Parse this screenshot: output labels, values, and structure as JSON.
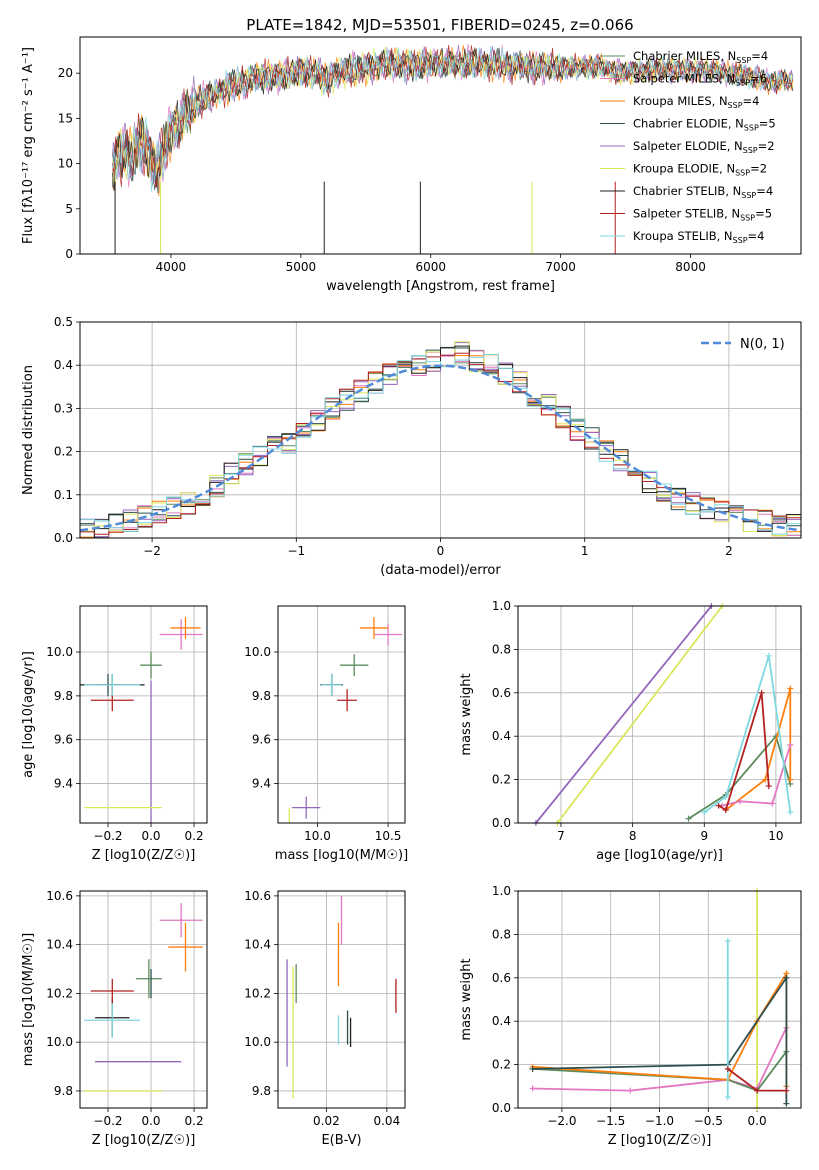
{
  "figure_title": "PLATE=1842, MJD=53501, FIBERID=0245, z=0.066",
  "series_colors": [
    "#5b8a5b",
    "#e377c2",
    "#ff7f0e",
    "#2f4f4f",
    "#9467bd",
    "#dbe55a",
    "#1f1f1f",
    "#b22222",
    "#7fd8e0"
  ],
  "chart_data": [
    {
      "id": "spectrum",
      "type": "line",
      "title": "PLATE=1842, MJD=53501, FIBERID=0245, z=0.066",
      "xlabel": "wavelength [Angstrom, rest frame]",
      "ylabel": "Flux [fλ10⁻¹⁷ erg cm⁻² s⁻¹ A⁻¹]",
      "xlim": [
        3300,
        8850
      ],
      "ylim": [
        0,
        24
      ],
      "xticks": [
        4000,
        5000,
        6000,
        7000,
        8000
      ],
      "yticks": [
        0,
        5,
        10,
        15,
        20
      ],
      "grid": false,
      "legend_position": "top-right",
      "x": [
        3550,
        3600,
        3650,
        3700,
        3750,
        3800,
        3850,
        3900,
        3950,
        4000,
        4100,
        4200,
        4300,
        4400,
        4500,
        4600,
        4700,
        4800,
        4900,
        5000,
        5100,
        5200,
        5300,
        5400,
        5500,
        5600,
        5700,
        5800,
        5900,
        6000,
        6100,
        6200,
        6300,
        6400,
        6500,
        6600,
        6700,
        6800,
        6900,
        7000,
        7100,
        7200,
        7300,
        7400,
        7500,
        7600,
        7700,
        7800,
        7900,
        8000,
        8100,
        8200,
        8300,
        8400,
        8500,
        8600,
        8700,
        8800
      ],
      "y": [
        9.8,
        10.8,
        11.2,
        10.6,
        12.4,
        12.0,
        10.2,
        9.4,
        11.8,
        13.6,
        15.2,
        16.8,
        17.4,
        18.2,
        18.8,
        19.2,
        19.5,
        19.6,
        19.8,
        20.3,
        20.1,
        19.2,
        20.2,
        20.4,
        20.6,
        21.0,
        21.0,
        20.8,
        20.9,
        21.1,
        21.2,
        21.0,
        21.2,
        21.1,
        21.0,
        20.9,
        20.7,
        20.6,
        20.7,
        20.6,
        20.7,
        20.6,
        20.8,
        20.2,
        20.1,
        20.4,
        20.3,
        20.4,
        20.3,
        20.3,
        20.4,
        20.2,
        19.9,
        19.8,
        19.5,
        19.0,
        19.2,
        19.0
      ],
      "series": [
        {
          "name": "Chabrier MILES, N_SSP=4",
          "color": "#5b8a5b"
        },
        {
          "name": "Salpeter MILES, N_SSP=6",
          "color": "#e377c2"
        },
        {
          "name": "Kroupa MILES, N_SSP=4",
          "color": "#ff7f0e"
        },
        {
          "name": "Chabrier ELODIE, N_SSP=5",
          "color": "#2f4f4f"
        },
        {
          "name": "Salpeter ELODIE, N_SSP=2",
          "color": "#9467bd"
        },
        {
          "name": "Kroupa ELODIE, N_SSP=2",
          "color": "#dbe55a"
        },
        {
          "name": "Chabrier STELIB, N_SSP=4",
          "color": "#1f1f1f"
        },
        {
          "name": "Salpeter STELIB, N_SSP=5",
          "color": "#b22222"
        },
        {
          "name": "Kroupa STELIB, N_SSP=4",
          "color": "#7fd8e0"
        }
      ]
    },
    {
      "id": "residual-histogram",
      "type": "line",
      "xlabel": "(data-model)/error",
      "ylabel": "Normed distribution",
      "xlim": [
        -2.5,
        2.5
      ],
      "ylim": [
        0,
        0.5
      ],
      "xticks": [
        -2,
        -1,
        0,
        1,
        2
      ],
      "ytick_values": [
        0.0,
        0.1,
        0.2,
        0.3,
        0.4,
        0.5
      ],
      "ytick_labels": [
        "0.0",
        "0.1",
        "0.2",
        "0.3",
        "0.4",
        "0.5"
      ],
      "grid": true,
      "legend_position": "top-right",
      "normal_label": "N(0, 1)",
      "hist_bins": [
        -2.5,
        -2.4,
        -2.3,
        -2.2,
        -2.1,
        -2.0,
        -1.9,
        -1.8,
        -1.7,
        -1.6,
        -1.5,
        -1.4,
        -1.3,
        -1.2,
        -1.1,
        -1.0,
        -0.9,
        -0.8,
        -0.7,
        -0.6,
        -0.5,
        -0.4,
        -0.3,
        -0.2,
        -0.1,
        0.0,
        0.1,
        0.2,
        0.3,
        0.4,
        0.5,
        0.6,
        0.7,
        0.8,
        0.9,
        1.0,
        1.1,
        1.2,
        1.3,
        1.4,
        1.5,
        1.6,
        1.7,
        1.8,
        1.9,
        2.0,
        2.1,
        2.2,
        2.3,
        2.4,
        2.5
      ],
      "hist_heights": [
        0.02,
        0.02,
        0.03,
        0.04,
        0.05,
        0.06,
        0.07,
        0.08,
        0.1,
        0.12,
        0.15,
        0.17,
        0.19,
        0.21,
        0.22,
        0.25,
        0.27,
        0.3,
        0.32,
        0.34,
        0.36,
        0.38,
        0.39,
        0.4,
        0.41,
        0.42,
        0.43,
        0.41,
        0.4,
        0.38,
        0.36,
        0.33,
        0.31,
        0.28,
        0.25,
        0.23,
        0.2,
        0.18,
        0.15,
        0.13,
        0.11,
        0.09,
        0.08,
        0.07,
        0.06,
        0.05,
        0.04,
        0.04,
        0.03,
        0.03
      ]
    },
    {
      "id": "age-vs-Z",
      "type": "scatter",
      "xlabel": "Z [log10(Z/Z☉)]",
      "ylabel": "age  [log10(age/yr)]",
      "xlim": [
        -0.33,
        0.26
      ],
      "ylim": [
        9.22,
        10.21
      ],
      "xticks": [
        -0.2,
        0.0,
        0.2
      ],
      "yticks": [
        9.4,
        9.6,
        9.8,
        10.0
      ],
      "grid": true,
      "points": [
        {
          "series": "Chabrier MILES",
          "x": 0.0,
          "y": 9.94,
          "xerr": 0.05,
          "yerr": 0.06
        },
        {
          "series": "Salpeter MILES",
          "x": 0.14,
          "y": 10.08,
          "xerr": 0.1,
          "yerr": 0.07
        },
        {
          "series": "Kroupa MILES",
          "x": 0.16,
          "y": 10.11,
          "xerr": 0.07,
          "yerr": 0.05
        },
        {
          "series": "Chabrier ELODIE",
          "x": -0.2,
          "y": 9.85,
          "xerr": 0.05,
          "yerr": 0.05
        },
        {
          "series": "Salpeter ELODIE",
          "x": 0.0,
          "y": 9.87,
          "xerr": 0.0,
          "yerr": 0.0
        },
        {
          "series": "Kroupa ELODIE",
          "x": -0.13,
          "y": 9.29,
          "xerr": 0.18,
          "yerr": 0.0
        },
        {
          "series": "Chabrier STELIB",
          "x": -0.18,
          "y": 9.85,
          "xerr": 0.15,
          "yerr": 0.05
        },
        {
          "series": "Salpeter STELIB",
          "x": -0.18,
          "y": 9.78,
          "xerr": 0.1,
          "yerr": 0.05
        },
        {
          "series": "Kroupa STELIB",
          "x": -0.18,
          "y": 9.85,
          "xerr": 0.13,
          "yerr": 0.05
        }
      ]
    },
    {
      "id": "age-vs-mass",
      "type": "scatter",
      "xlabel": "mass [log10(M/M☉)]",
      "ylabel": "",
      "xlim": [
        9.72,
        10.62
      ],
      "ylim": [
        9.22,
        10.21
      ],
      "xticks": [
        10.0,
        10.5
      ],
      "yticks": [
        9.4,
        9.6,
        9.8,
        10.0
      ],
      "grid": true,
      "points": [
        {
          "series": "Chabrier MILES",
          "x": 10.26,
          "y": 9.94,
          "xerr": 0.1,
          "yerr": 0.05
        },
        {
          "series": "Salpeter MILES",
          "x": 10.5,
          "y": 10.08,
          "xerr": 0.1,
          "yerr": 0.05
        },
        {
          "series": "Kroupa MILES",
          "x": 10.4,
          "y": 10.11,
          "xerr": 0.1,
          "yerr": 0.05
        },
        {
          "series": "Chabrier ELODIE",
          "x": 10.1,
          "y": 9.85,
          "xerr": 0.08,
          "yerr": 0.05
        },
        {
          "series": "Salpeter ELODIE",
          "x": 9.92,
          "y": 9.29,
          "xerr": 0.1,
          "yerr": 0.05
        },
        {
          "series": "Kroupa ELODIE",
          "x": 9.8,
          "y": 9.29,
          "xerr": 0.0,
          "yerr": 0.0
        },
        {
          "series": "Chabrier STELIB",
          "x": 10.1,
          "y": 9.85,
          "xerr": 0.07,
          "yerr": 0.05
        },
        {
          "series": "Salpeter STELIB",
          "x": 10.21,
          "y": 9.78,
          "xerr": 0.07,
          "yerr": 0.05
        },
        {
          "series": "Kroupa STELIB",
          "x": 10.1,
          "y": 9.85,
          "xerr": 0.07,
          "yerr": 0.05
        }
      ]
    },
    {
      "id": "mass-weight-vs-age",
      "type": "line",
      "xlabel": "age  [log10(age/yr)]",
      "ylabel": "mass weight",
      "xlim": [
        6.4,
        10.35
      ],
      "ylim": [
        0,
        1
      ],
      "xticks": [
        7,
        8,
        9,
        10
      ],
      "ytick_values": [
        0.0,
        0.2,
        0.4,
        0.6,
        0.8,
        1.0
      ],
      "ytick_labels": [
        "0.0",
        "0.2",
        "0.4",
        "0.6",
        "0.8",
        "1.0"
      ],
      "grid": true,
      "lines": [
        {
          "series": "Salpeter ELODIE",
          "x": [
            6.65,
            9.1
          ],
          "y": [
            0.0,
            1.0
          ]
        },
        {
          "series": "Kroupa ELODIE",
          "x": [
            6.95,
            9.25
          ],
          "y": [
            0.0,
            1.0
          ]
        },
        {
          "series": "Chabrier MILES",
          "x": [
            8.78,
            9.3,
            10.0,
            10.2
          ],
          "y": [
            0.02,
            0.13,
            0.4,
            0.18
          ]
        },
        {
          "series": "Kroupa MILES",
          "x": [
            9.3,
            9.85,
            10.2,
            10.2
          ],
          "y": [
            0.06,
            0.2,
            0.62,
            0.2
          ]
        },
        {
          "series": "Salpeter MILES",
          "x": [
            9.25,
            9.5,
            9.95,
            10.2
          ],
          "y": [
            0.08,
            0.1,
            0.09,
            0.36
          ]
        },
        {
          "series": "Salpeter STELIB",
          "x": [
            9.2,
            9.3,
            9.8,
            9.9
          ],
          "y": [
            0.08,
            0.06,
            0.6,
            0.17
          ]
        },
        {
          "series": "Kroupa STELIB",
          "x": [
            9.0,
            9.3,
            9.9,
            10.2
          ],
          "y": [
            0.05,
            0.12,
            0.77,
            0.05
          ]
        }
      ]
    },
    {
      "id": "mass-vs-Z",
      "type": "scatter",
      "xlabel": "Z [log10(Z/Z☉)]",
      "ylabel": "mass [log10(M/M☉)]",
      "xlim": [
        -0.33,
        0.26
      ],
      "ylim": [
        9.73,
        10.62
      ],
      "xticks": [
        -0.2,
        0.0,
        0.2
      ],
      "yticks": [
        9.8,
        10.0,
        10.2,
        10.4,
        10.6
      ],
      "grid": true,
      "points": [
        {
          "series": "Chabrier MILES",
          "x": -0.01,
          "y": 10.26,
          "xerr": 0.06,
          "yerr": 0.08
        },
        {
          "series": "Salpeter MILES",
          "x": 0.14,
          "y": 10.5,
          "xerr": 0.1,
          "yerr": 0.07
        },
        {
          "series": "Kroupa MILES",
          "x": 0.16,
          "y": 10.39,
          "xerr": 0.08,
          "yerr": 0.1
        },
        {
          "series": "Chabrier ELODIE",
          "x": 0.0,
          "y": 10.24,
          "xerr": 0.0,
          "yerr": 0.06
        },
        {
          "series": "Salpeter ELODIE",
          "x": -0.06,
          "y": 9.92,
          "xerr": 0.2,
          "yerr": 0.0
        },
        {
          "series": "Kroupa ELODIE",
          "x": -0.13,
          "y": 9.8,
          "xerr": 0.18,
          "yerr": 0.0
        },
        {
          "series": "Chabrier STELIB",
          "x": -0.18,
          "y": 10.1,
          "xerr": 0.08,
          "yerr": 0.08
        },
        {
          "series": "Salpeter STELIB",
          "x": -0.18,
          "y": 10.21,
          "xerr": 0.1,
          "yerr": 0.05
        },
        {
          "series": "Kroupa STELIB",
          "x": -0.18,
          "y": 10.09,
          "xerr": 0.13,
          "yerr": 0.07
        }
      ]
    },
    {
      "id": "mass-vs-ebv",
      "type": "scatter",
      "xlabel": "E(B-V)",
      "ylabel": "",
      "xlim": [
        0.004,
        0.046
      ],
      "ylim": [
        9.73,
        10.62
      ],
      "xticks": [
        0.02,
        0.04
      ],
      "yticks": [
        9.8,
        10.0,
        10.2,
        10.4,
        10.6
      ],
      "grid": true,
      "points": [
        {
          "series": "Chabrier MILES",
          "x": 0.01,
          "y": 10.24,
          "yerr": 0.08
        },
        {
          "series": "Salpeter MILES",
          "x": 0.025,
          "y": 10.5,
          "yerr": 0.1
        },
        {
          "series": "Kroupa MILES",
          "x": 0.024,
          "y": 10.36,
          "yerr": 0.13
        },
        {
          "series": "Chabrier ELODIE",
          "x": 0.027,
          "y": 10.06,
          "yerr": 0.07
        },
        {
          "series": "Salpeter ELODIE",
          "x": 0.007,
          "y": 10.12,
          "yerr": 0.22
        },
        {
          "series": "Kroupa ELODIE",
          "x": 0.009,
          "y": 10.04,
          "yerr": 0.27
        },
        {
          "series": "Chabrier STELIB",
          "x": 0.028,
          "y": 10.04,
          "yerr": 0.06
        },
        {
          "series": "Salpeter STELIB",
          "x": 0.043,
          "y": 10.19,
          "yerr": 0.07
        },
        {
          "series": "Kroupa STELIB",
          "x": 0.024,
          "y": 10.05,
          "yerr": 0.06
        }
      ]
    },
    {
      "id": "mass-weight-vs-Z",
      "type": "line",
      "xlabel": "Z [log10(Z/Z☉)]",
      "ylabel": "mass weight",
      "xlim": [
        -2.45,
        0.45
      ],
      "ylim": [
        0,
        1
      ],
      "xticks": [
        -2.0,
        -1.5,
        -1.0,
        -0.5,
        0.0
      ],
      "ytick_values": [
        0.0,
        0.2,
        0.4,
        0.6,
        0.8,
        1.0
      ],
      "ytick_labels": [
        "0.0",
        "0.2",
        "0.4",
        "0.6",
        "0.8",
        "1.0"
      ],
      "grid": true,
      "lines": [
        {
          "series": "Kroupa ELODIE",
          "x": [
            0.0,
            0.0
          ],
          "y": [
            0.0,
            1.0
          ]
        },
        {
          "series": "Salpeter MILES",
          "x": [
            -2.3,
            -1.3,
            -0.3,
            0.0,
            0.3
          ],
          "y": [
            0.09,
            0.08,
            0.13,
            0.09,
            0.37
          ]
        },
        {
          "series": "Chabrier MILES",
          "x": [
            -2.3,
            -0.3,
            0.0,
            0.3
          ],
          "y": [
            0.18,
            0.13,
            0.08,
            0.26
          ]
        },
        {
          "series": "Kroupa MILES",
          "x": [
            -2.3,
            -0.3,
            0.0,
            0.3,
            0.3
          ],
          "y": [
            0.19,
            0.13,
            0.4,
            0.62,
            0.1
          ]
        },
        {
          "series": "Chabrier ELODIE",
          "x": [
            -2.3,
            -0.3,
            0.3,
            0.3
          ],
          "y": [
            0.18,
            0.2,
            0.6,
            0.02
          ]
        },
        {
          "series": "Kroupa STELIB",
          "x": [
            -0.3,
            -0.3
          ],
          "y": [
            0.77,
            0.05
          ]
        },
        {
          "series": "Salpeter STELIB",
          "x": [
            -0.3,
            0.0,
            0.3
          ],
          "y": [
            0.18,
            0.08,
            0.08
          ]
        }
      ]
    }
  ]
}
